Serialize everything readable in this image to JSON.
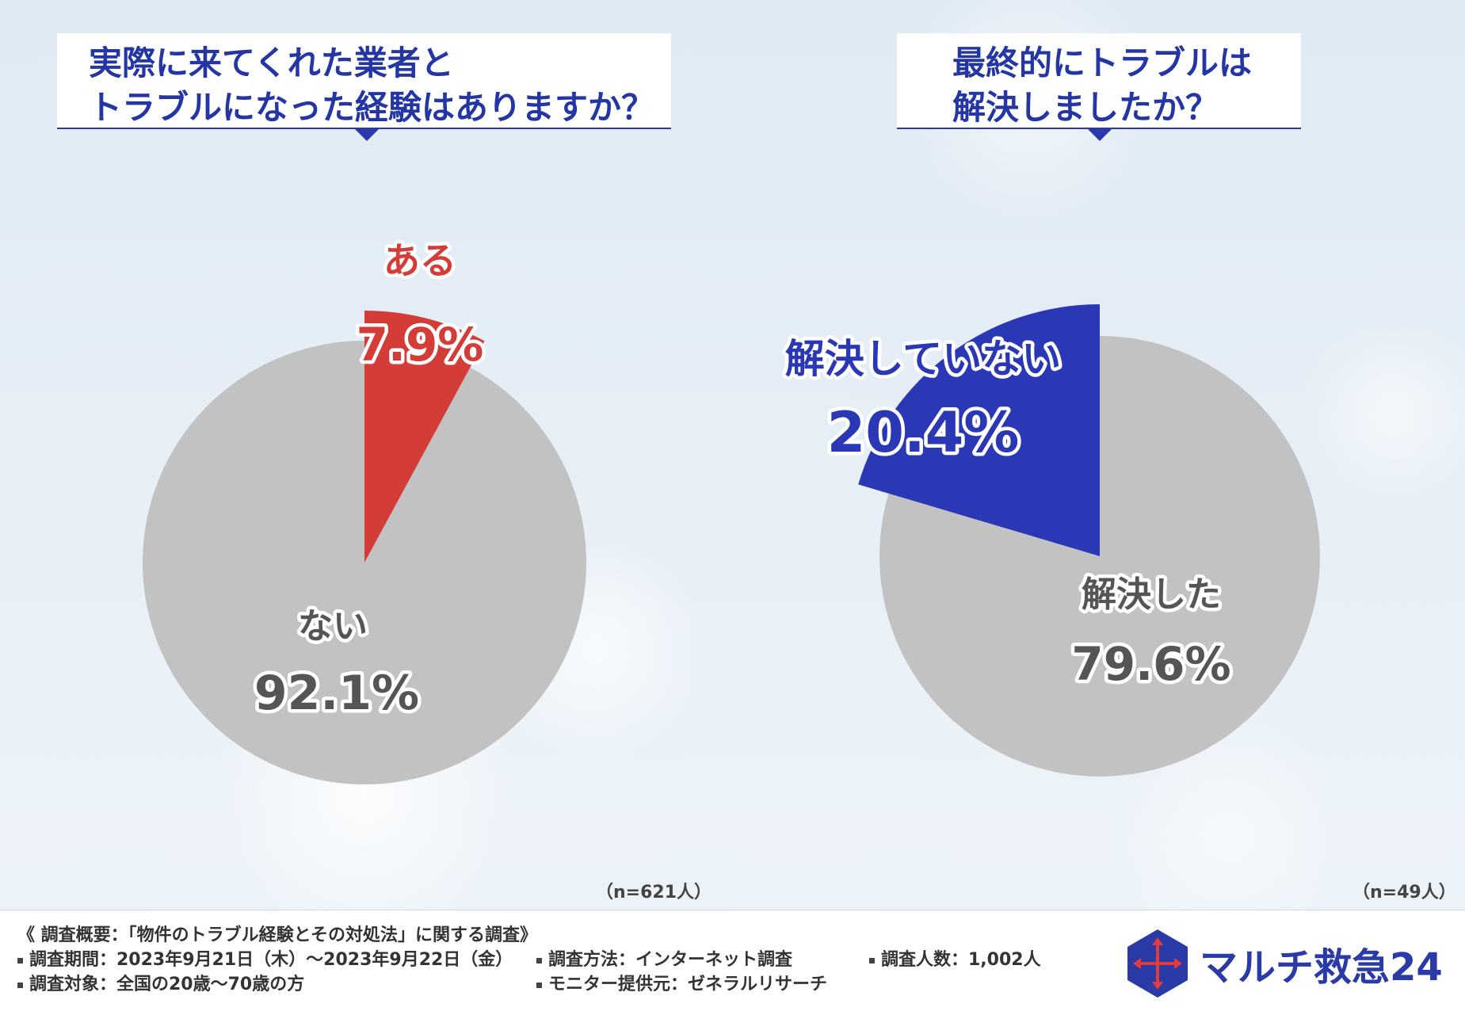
{
  "left_title": {
    "line1": "実際に来てくれた業者と",
    "line2": "トラブルになった経験はありますか？"
  },
  "right_title": {
    "line1": "最終的にトラブルは",
    "line2": "解決しましたか？"
  },
  "chart_data": [
    {
      "type": "pie",
      "title": "実際に来てくれた業者とトラブルになった経験はありますか？",
      "sample": "（n=621人）",
      "slices": [
        {
          "label": "ある",
          "value": 7.9,
          "display": "7.9%",
          "color": "#d33c37"
        },
        {
          "label": "ない",
          "value": 92.1,
          "display": "92.1%",
          "color": "#c2c2c2"
        }
      ]
    },
    {
      "type": "pie",
      "title": "最終的にトラブルは解決しましたか？",
      "sample": "（n=49人）",
      "slices": [
        {
          "label": "解決していない",
          "value": 20.4,
          "display": "20.4%",
          "color": "#2a38b5"
        },
        {
          "label": "解決した",
          "value": 79.6,
          "display": "79.6%",
          "color": "#c2c2c2"
        }
      ]
    }
  ],
  "footer": {
    "summary": "《 調査概要：「物件のトラブル経験とその対処法」に関する調査》",
    "period": "調査期間：2023年9月21日（木）〜2023年9月22日（金）",
    "method": "調査方法：インターネット調査",
    "count": "調査人数：1,002人",
    "target": "調査対象：全国の20歳〜70歳の方",
    "provider": "モニター提供元：ゼネラルリサーチ"
  },
  "brand": {
    "name": "マルチ救急24",
    "color": "#2a3aa6",
    "icon": "cross-arrows-hexagon-icon"
  }
}
